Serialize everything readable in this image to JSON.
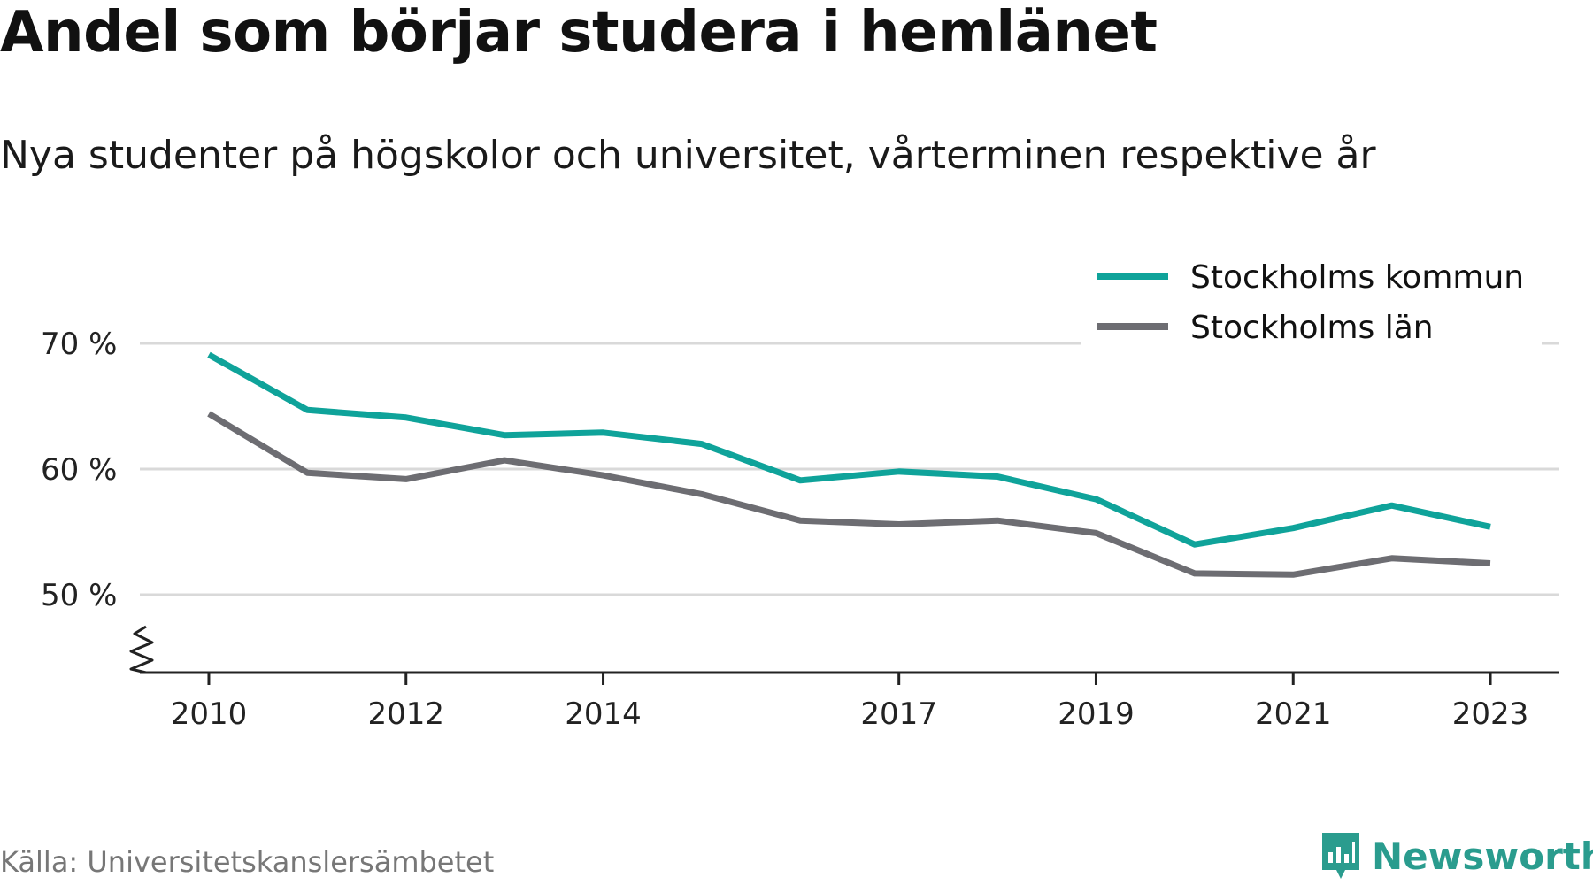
{
  "title": "Andel som börjar studera i hemlänet",
  "subtitle": "Nya studenter på högskolor och universitet, vårterminen respektive år",
  "source": "Källa: Universitetskanslersämbetet",
  "brand": "Newsworthy",
  "colors": {
    "kommun": "#0fa39a",
    "lan": "#6d6d72",
    "grid": "#d9d9d9",
    "axis": "#222222",
    "brand": "#2a9c8e"
  },
  "chart_data": {
    "type": "line",
    "x": [
      2010,
      2011,
      2012,
      2013,
      2014,
      2015,
      2016,
      2017,
      2018,
      2019,
      2020,
      2021,
      2022,
      2023
    ],
    "xticks": [
      2010,
      2012,
      2014,
      2017,
      2019,
      2021,
      2023
    ],
    "xtick_labels": [
      "2010",
      "2012",
      "2014",
      "2017",
      "2019",
      "2021",
      "2023"
    ],
    "yticks": [
      50,
      60,
      70
    ],
    "ytick_labels": [
      "50 %",
      "60 %",
      "70 %"
    ],
    "ylim": [
      44,
      73
    ],
    "xlim": [
      2009.3,
      2023.7
    ],
    "axis_break": true,
    "grid": true,
    "legend_position": "top-right",
    "series": [
      {
        "name": "Stockholms kommun",
        "color_key": "kommun",
        "values": [
          69.1,
          64.7,
          64.1,
          62.7,
          62.9,
          62.0,
          59.1,
          59.8,
          59.4,
          57.6,
          54.0,
          55.3,
          57.1,
          55.4
        ]
      },
      {
        "name": "Stockholms län",
        "color_key": "lan",
        "values": [
          64.4,
          59.7,
          59.2,
          60.7,
          59.5,
          58.0,
          55.9,
          55.6,
          55.9,
          54.9,
          51.7,
          51.6,
          52.9,
          52.5
        ]
      }
    ]
  }
}
